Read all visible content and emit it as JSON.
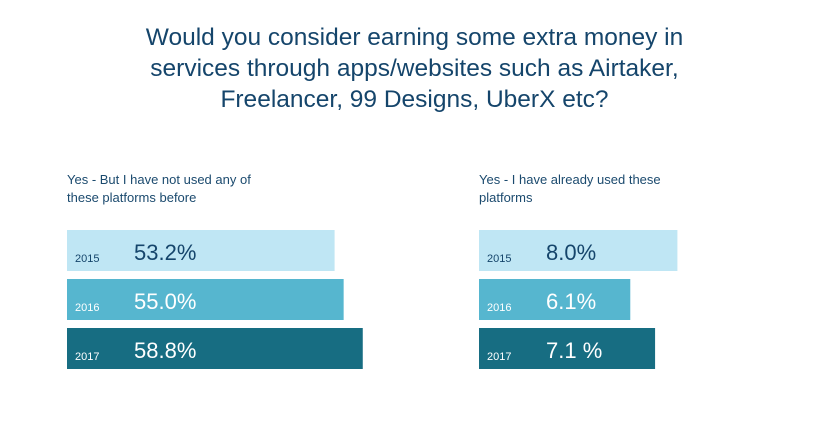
{
  "title_lines": [
    "Would you consider earning some extra money in",
    "services through apps/websites such as Airtaker,",
    "Freelancer, 99 Designs, UberX etc?"
  ],
  "colors": {
    "title": "#15456b",
    "label": "#1b4a6e",
    "year_2015": "#bfe6f4",
    "year_2016": "#56b6cf",
    "year_2017": "#176d82",
    "text_on_light": "#15456b",
    "text_on_dark": "#ffffff"
  },
  "chart_data": [
    {
      "type": "bar",
      "orientation": "horizontal",
      "title": "Yes - But I have not used any of these platforms before",
      "title_lines": [
        "Yes - But I have not used any of",
        "these platforms before"
      ],
      "categories": [
        "2015",
        "2016",
        "2017"
      ],
      "values": [
        53.2,
        55.0,
        58.8
      ],
      "value_labels": [
        "53.2%",
        "55.0%",
        "58.8%"
      ],
      "unit": "%",
      "grid": false,
      "legend": "none"
    },
    {
      "type": "bar",
      "orientation": "horizontal",
      "title": "Yes - I have already used these platforms",
      "title_lines": [
        "Yes - I have already used these",
        "platforms"
      ],
      "categories": [
        "2015",
        "2016",
        "2017"
      ],
      "values": [
        8.0,
        6.1,
        7.1
      ],
      "value_labels": [
        "8.0%",
        "6.1%",
        "7.1 %"
      ],
      "unit": "%",
      "grid": false,
      "legend": "none"
    }
  ]
}
